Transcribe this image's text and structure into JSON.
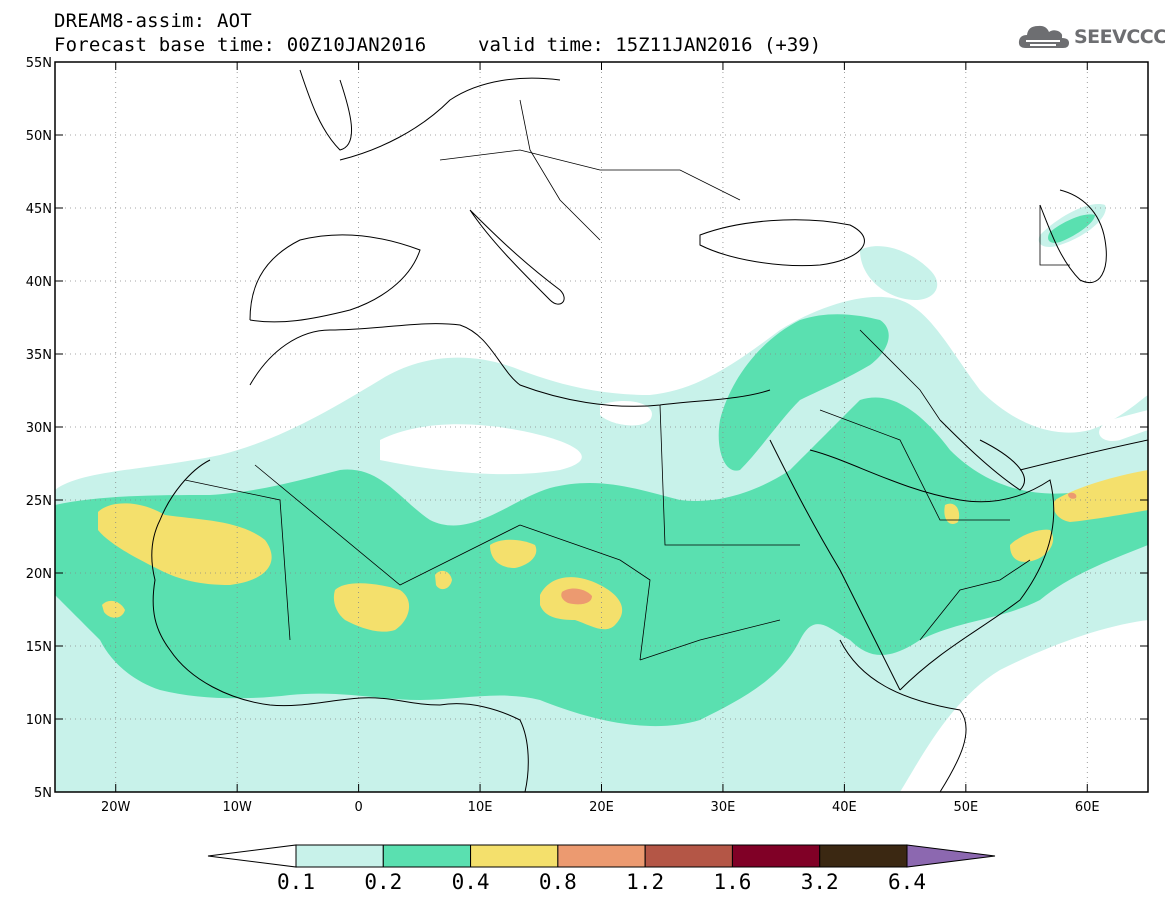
{
  "header": {
    "title_line": "DREAM8-assim: AOT",
    "base_time": "Forecast base time: 00Z10JAN2016",
    "valid_time": "valid time: 15Z11JAN2016 (+39)"
  },
  "logo": {
    "text": "SEEVCCC",
    "icon": "cloud-icon",
    "color": "#6d6e71"
  },
  "axes": {
    "lon_range": [
      -25,
      65
    ],
    "lat_range": [
      5,
      55
    ],
    "x_ticks": [
      {
        "lon": -20,
        "label": "20W"
      },
      {
        "lon": -10,
        "label": "10W"
      },
      {
        "lon": 0,
        "label": "0"
      },
      {
        "lon": 10,
        "label": "10E"
      },
      {
        "lon": 20,
        "label": "20E"
      },
      {
        "lon": 30,
        "label": "30E"
      },
      {
        "lon": 40,
        "label": "40E"
      },
      {
        "lon": 50,
        "label": "50E"
      },
      {
        "lon": 60,
        "label": "60E"
      }
    ],
    "y_ticks": [
      {
        "lat": 55,
        "label": "55N"
      },
      {
        "lat": 50,
        "label": "50N"
      },
      {
        "lat": 45,
        "label": "45N"
      },
      {
        "lat": 40,
        "label": "40N"
      },
      {
        "lat": 35,
        "label": "35N"
      },
      {
        "lat": 30,
        "label": "30N"
      },
      {
        "lat": 25,
        "label": "25N"
      },
      {
        "lat": 20,
        "label": "20N"
      },
      {
        "lat": 15,
        "label": "15N"
      },
      {
        "lat": 10,
        "label": "10N"
      },
      {
        "lat": 5,
        "label": "5N"
      }
    ],
    "grid": true
  },
  "colorbar": {
    "colors": [
      "#ffffff",
      "#c8f2ea",
      "#5ae0b0",
      "#f4e06c",
      "#ec9a70",
      "#b45646",
      "#800026",
      "#3b2812",
      "#8c68b0"
    ],
    "levels": [
      "0.1",
      "0.2",
      "0.4",
      "0.8",
      "1.2",
      "1.6",
      "3.2",
      "6.4"
    ]
  },
  "colors": {
    "low": "#c8f2ea",
    "mid": "#5ae0b0",
    "high": "#f4e06c",
    "very_high": "#ec9a70"
  }
}
